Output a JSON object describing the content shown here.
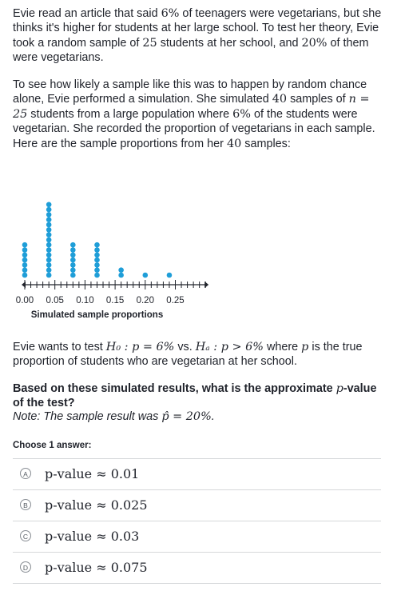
{
  "question": {
    "p1": {
      "a": "Evie read an article that said ",
      "pct1": "6%",
      "b": " of teenagers were vegetarians, but she thinks it's higher for students at her large school. To test her theory, Evie took a random sample of ",
      "n25": "25",
      "c": " students at her school, and ",
      "pct2": "20%",
      "d": " of them were vegetarians."
    },
    "p2": {
      "a": "To see how likely a sample like this was to happen by random chance alone, Evie performed a simulation. She simulated ",
      "n40": "40",
      "b": " samples of ",
      "neq": "n = 25",
      "c": " students from a large population where ",
      "pct": "6%",
      "d": " of the students were vegetarian. She recorded the proportion of vegetarians in each sample. Here are the sample proportions from her ",
      "n40b": "40",
      "e": " samples:"
    },
    "p3": {
      "a": "Evie wants to test ",
      "h0": "H₀ : p = 6%",
      "vs": " vs. ",
      "ha": "Hₐ : p > 6%",
      "b": " where ",
      "p": "p",
      "c": " is the true proportion of students who are vegetarian at her school."
    },
    "p4": {
      "a": "Based on these simulated results, what is the approximate ",
      "p": "p",
      "b": "-value of the test?"
    },
    "p5": {
      "a": "Note: The sample result was ",
      "phat": "p̂ = 20%",
      "b": "."
    }
  },
  "chart_data": {
    "type": "dotplot",
    "xlabel": "Simulated sample proportions",
    "tick_labels": [
      "0.00",
      "0.05",
      "0.10",
      "0.15",
      "0.20",
      "0.25"
    ],
    "xlim": [
      0,
      0.3
    ],
    "values": [
      {
        "x": 0.0,
        "count": 7
      },
      {
        "x": 0.04,
        "count": 15
      },
      {
        "x": 0.08,
        "count": 7
      },
      {
        "x": 0.12,
        "count": 7
      },
      {
        "x": 0.16,
        "count": 2
      },
      {
        "x": 0.2,
        "count": 1
      },
      {
        "x": 0.24,
        "count": 1
      }
    ],
    "dot_color": "#1f9ed8"
  },
  "answers": {
    "prompt": "Choose 1 answer:",
    "choices": [
      {
        "letter": "A",
        "text": "p-value ≈ 0.01"
      },
      {
        "letter": "B",
        "text": "p-value ≈ 0.025"
      },
      {
        "letter": "C",
        "text": "p-value ≈ 0.03"
      },
      {
        "letter": "D",
        "text": "p-value ≈ 0.075"
      }
    ]
  }
}
